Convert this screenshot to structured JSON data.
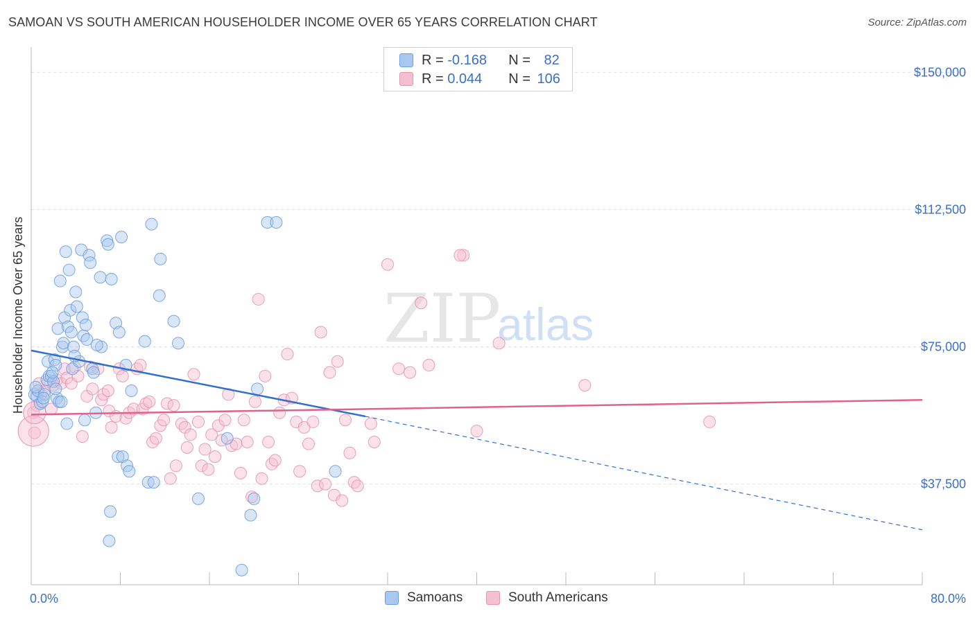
{
  "title": "SAMOAN VS SOUTH AMERICAN HOUSEHOLDER INCOME OVER 65 YEARS CORRELATION CHART",
  "source": "Source: ZipAtlas.com",
  "watermark": {
    "zip": "ZIP",
    "atlas": "atlas"
  },
  "legend": {
    "rows": [
      {
        "r_label": "R =",
        "r_value": "-0.168",
        "n_label": "N =",
        "n_value": "82",
        "color": "#a9c8f0",
        "border": "#6d9fe0"
      },
      {
        "r_label": "R =",
        "r_value": "0.044",
        "n_label": "N =",
        "n_value": "106",
        "color": "#f6bfd1",
        "border": "#e893b0"
      }
    ]
  },
  "bottom_legend": [
    {
      "label": "Samoans",
      "color": "#a9c8f0",
      "border": "#6d9fe0"
    },
    {
      "label": "South Americans",
      "color": "#f6bfd1",
      "border": "#e893b0"
    }
  ],
  "chart_data": {
    "type": "scatter",
    "title": "SAMOAN VS SOUTH AMERICAN HOUSEHOLDER INCOME OVER 65 YEARS CORRELATION CHART",
    "xlabel": "",
    "ylabel": "Householder Income Over 65 years",
    "xlim": [
      0,
      80
    ],
    "ylim": [
      10000,
      155000
    ],
    "x_tick_labels": [
      "0.0%",
      "80.0%"
    ],
    "y_ticks": [
      37500,
      75000,
      112500,
      150000
    ],
    "y_tick_labels": [
      "$37,500",
      "$75,000",
      "$112,500",
      "$150,000"
    ],
    "grid": true,
    "legend_position": "top-center",
    "series": [
      {
        "name": "Samoans",
        "color": "#6d9fe0",
        "fill": "#a9c8f0",
        "trend": {
          "x0": 0,
          "y0": 74000,
          "x1": 30,
          "y1": 56000,
          "dashed_to_x": 80,
          "dashed_to_y": 25000,
          "color": "#2f6fd0"
        },
        "points": [
          [
            0.3,
            62000
          ],
          [
            0.5,
            61500
          ],
          [
            0.6,
            63000
          ],
          [
            0.8,
            59500
          ],
          [
            1.0,
            60000
          ],
          [
            1.2,
            62000
          ],
          [
            1.4,
            66000
          ],
          [
            1.5,
            71000
          ],
          [
            1.6,
            67000
          ],
          [
            1.8,
            67000
          ],
          [
            2.0,
            65500
          ],
          [
            2.1,
            71500
          ],
          [
            2.2,
            70000
          ],
          [
            2.3,
            61000
          ],
          [
            2.4,
            80000
          ],
          [
            2.5,
            60000
          ],
          [
            2.6,
            93000
          ],
          [
            2.7,
            60000
          ],
          [
            2.8,
            75000
          ],
          [
            2.9,
            76000
          ],
          [
            3.0,
            83000
          ],
          [
            3.1,
            101000
          ],
          [
            3.2,
            54000
          ],
          [
            3.3,
            80500
          ],
          [
            3.4,
            96000
          ],
          [
            3.5,
            85000
          ],
          [
            3.6,
            79000
          ],
          [
            3.7,
            69000
          ],
          [
            3.8,
            75000
          ],
          [
            4.0,
            90000
          ],
          [
            4.1,
            86000
          ],
          [
            4.3,
            71000
          ],
          [
            4.5,
            101500
          ],
          [
            4.6,
            83000
          ],
          [
            4.7,
            78000
          ],
          [
            4.8,
            55000
          ],
          [
            4.9,
            81000
          ],
          [
            5.0,
            77000
          ],
          [
            5.2,
            100000
          ],
          [
            5.3,
            98000
          ],
          [
            5.5,
            69000
          ],
          [
            5.6,
            68000
          ],
          [
            5.8,
            57000
          ],
          [
            6.2,
            94000
          ],
          [
            6.3,
            75000
          ],
          [
            6.8,
            104000
          ],
          [
            6.9,
            103000
          ],
          [
            7.0,
            22000
          ],
          [
            7.1,
            30000
          ],
          [
            7.2,
            93500
          ],
          [
            7.6,
            81500
          ],
          [
            7.8,
            45000
          ],
          [
            7.9,
            79000
          ],
          [
            8.1,
            105000
          ],
          [
            8.2,
            45000
          ],
          [
            8.5,
            70000
          ],
          [
            8.6,
            42500
          ],
          [
            8.8,
            41000
          ],
          [
            9.0,
            63000
          ],
          [
            10.2,
            76500
          ],
          [
            10.5,
            38000
          ],
          [
            10.8,
            108500
          ],
          [
            11.0,
            38000
          ],
          [
            11.5,
            89000
          ],
          [
            11.6,
            99000
          ],
          [
            12.8,
            82000
          ],
          [
            13.2,
            76000
          ],
          [
            15.0,
            33500
          ],
          [
            17.6,
            50000
          ],
          [
            18.9,
            14000
          ],
          [
            19.7,
            29000
          ],
          [
            20.0,
            33500
          ],
          [
            20.3,
            63500
          ],
          [
            21.2,
            109000
          ],
          [
            22.0,
            109000
          ],
          [
            27.3,
            41000
          ],
          [
            0.4,
            64000
          ],
          [
            1.1,
            61000
          ],
          [
            1.9,
            68000
          ],
          [
            2.2,
            63500
          ],
          [
            3.9,
            72500
          ],
          [
            5.9,
            75500
          ]
        ]
      },
      {
        "name": "South Americans",
        "color": "#e893b0",
        "fill": "#f6bfd1",
        "trend": {
          "x0": 0,
          "y0": 56500,
          "x1": 80,
          "y1": 60500,
          "color": "#e0608e"
        },
        "points": [
          [
            0.2,
            57000
          ],
          [
            0.3,
            51500
          ],
          [
            0.5,
            59000
          ],
          [
            0.7,
            65000
          ],
          [
            0.9,
            62000
          ],
          [
            1.2,
            63000
          ],
          [
            1.5,
            65500
          ],
          [
            1.8,
            58000
          ],
          [
            2.0,
            64500
          ],
          [
            2.3,
            66000
          ],
          [
            2.7,
            65000
          ],
          [
            3.0,
            69000
          ],
          [
            3.2,
            66500
          ],
          [
            3.6,
            65000
          ],
          [
            3.9,
            69500
          ],
          [
            4.2,
            67000
          ],
          [
            4.6,
            50500
          ],
          [
            5.0,
            61500
          ],
          [
            5.3,
            69500
          ],
          [
            5.5,
            63500
          ],
          [
            6.0,
            69000
          ],
          [
            6.3,
            60500
          ],
          [
            6.5,
            62000
          ],
          [
            6.9,
            63000
          ],
          [
            7.0,
            57500
          ],
          [
            7.2,
            53000
          ],
          [
            7.6,
            56000
          ],
          [
            7.9,
            69000
          ],
          [
            8.2,
            67000
          ],
          [
            8.5,
            55500
          ],
          [
            8.8,
            57000
          ],
          [
            9.2,
            58000
          ],
          [
            9.5,
            69000
          ],
          [
            9.8,
            70000
          ],
          [
            10.0,
            58000
          ],
          [
            10.3,
            59500
          ],
          [
            10.6,
            60000
          ],
          [
            10.9,
            49000
          ],
          [
            11.2,
            50000
          ],
          [
            11.6,
            53500
          ],
          [
            11.9,
            55000
          ],
          [
            12.2,
            59500
          ],
          [
            12.5,
            39000
          ],
          [
            12.8,
            59000
          ],
          [
            13.0,
            42500
          ],
          [
            13.5,
            54000
          ],
          [
            13.8,
            53000
          ],
          [
            14.0,
            47500
          ],
          [
            14.3,
            51000
          ],
          [
            14.6,
            67500
          ],
          [
            15.0,
            54500
          ],
          [
            15.3,
            42500
          ],
          [
            15.6,
            47000
          ],
          [
            15.9,
            41500
          ],
          [
            16.2,
            51000
          ],
          [
            16.5,
            45000
          ],
          [
            16.8,
            53500
          ],
          [
            17.1,
            49500
          ],
          [
            17.4,
            55000
          ],
          [
            17.7,
            62000
          ],
          [
            18.0,
            48000
          ],
          [
            18.4,
            48500
          ],
          [
            18.8,
            40500
          ],
          [
            19.1,
            55000
          ],
          [
            19.4,
            49000
          ],
          [
            19.8,
            34000
          ],
          [
            20.1,
            60000
          ],
          [
            20.4,
            88000
          ],
          [
            20.7,
            39000
          ],
          [
            21.0,
            67000
          ],
          [
            21.3,
            49000
          ],
          [
            21.6,
            43000
          ],
          [
            21.9,
            44000
          ],
          [
            22.3,
            57000
          ],
          [
            22.7,
            60500
          ],
          [
            23.0,
            73000
          ],
          [
            23.4,
            61000
          ],
          [
            23.8,
            54500
          ],
          [
            24.1,
            41000
          ],
          [
            24.5,
            53000
          ],
          [
            24.9,
            48500
          ],
          [
            25.3,
            54500
          ],
          [
            25.7,
            37000
          ],
          [
            26.0,
            79000
          ],
          [
            26.4,
            37500
          ],
          [
            26.8,
            68000
          ],
          [
            27.2,
            34500
          ],
          [
            27.5,
            71000
          ],
          [
            27.9,
            33000
          ],
          [
            28.2,
            55000
          ],
          [
            28.6,
            46000
          ],
          [
            29.0,
            38000
          ],
          [
            29.3,
            37000
          ],
          [
            30.5,
            54000
          ],
          [
            30.8,
            49000
          ],
          [
            32.0,
            97500
          ],
          [
            33.0,
            69000
          ],
          [
            34.0,
            68000
          ],
          [
            35.0,
            87000
          ],
          [
            35.7,
            70000
          ],
          [
            38.8,
            100000
          ],
          [
            40.0,
            52000
          ],
          [
            42.0,
            76000
          ],
          [
            49.7,
            64500
          ],
          [
            60.9,
            54500
          ],
          [
            38.5,
            100000
          ]
        ]
      }
    ]
  }
}
